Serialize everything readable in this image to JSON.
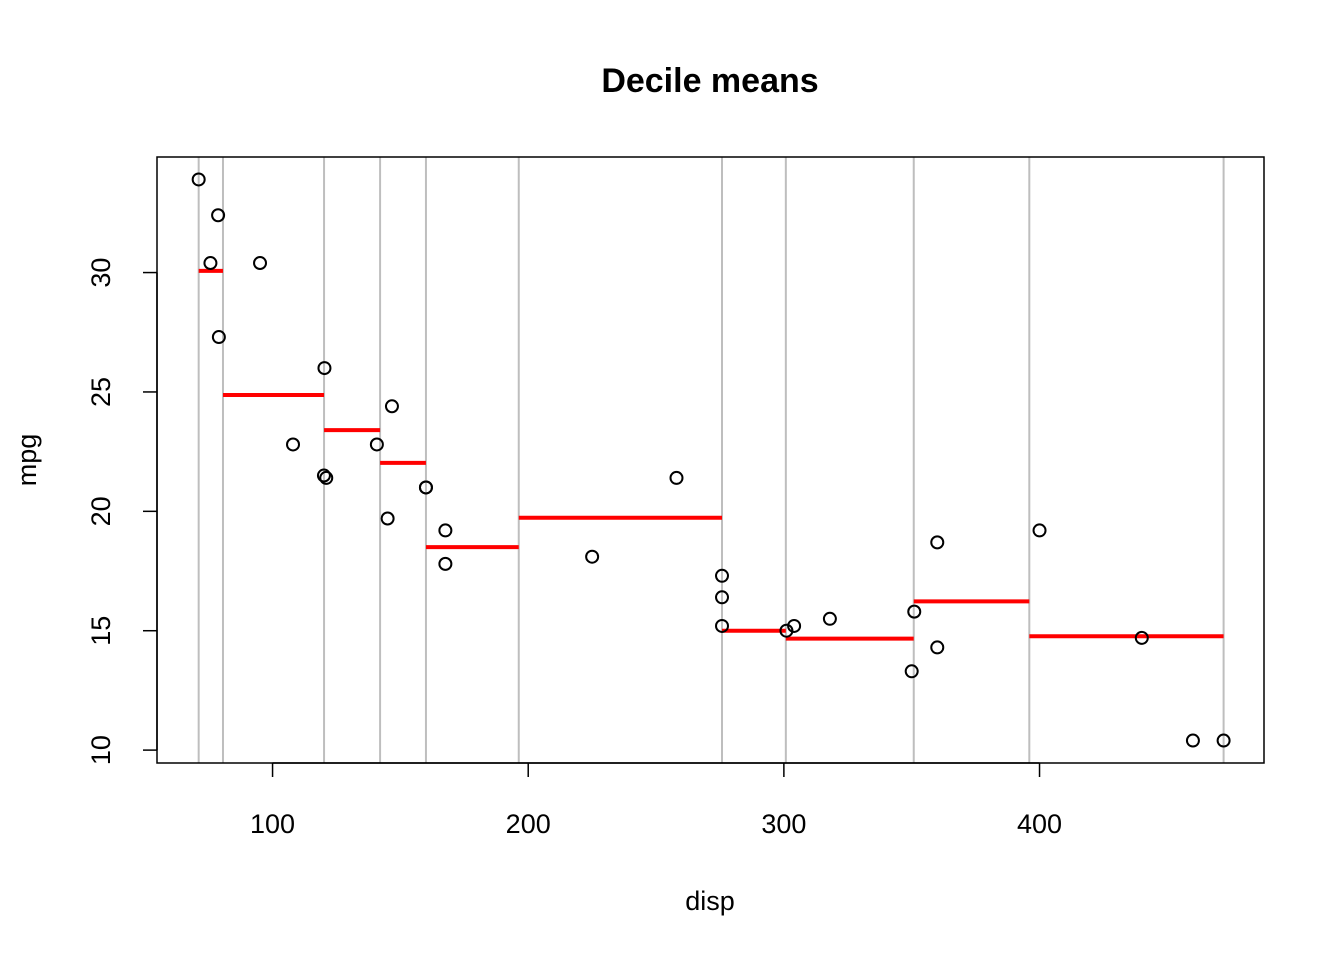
{
  "chart_data": {
    "type": "scatter",
    "title": "Decile means",
    "xlabel": "disp",
    "ylabel": "mpg",
    "xlim": [
      54.8,
      487.8
    ],
    "ylim": [
      9.46,
      34.84
    ],
    "x_ticks": [
      100,
      200,
      300,
      400
    ],
    "y_ticks": [
      10,
      15,
      20,
      25,
      30
    ],
    "grid": false,
    "colors": {
      "points": "#000000",
      "decile_means": "#ff0000",
      "decile_breaks": "#bebebe"
    },
    "points": [
      {
        "x": 160,
        "y": 21.0
      },
      {
        "x": 160,
        "y": 21.0
      },
      {
        "x": 108,
        "y": 22.8
      },
      {
        "x": 258,
        "y": 21.4
      },
      {
        "x": 360,
        "y": 18.7
      },
      {
        "x": 225,
        "y": 18.1
      },
      {
        "x": 360,
        "y": 14.3
      },
      {
        "x": 146.7,
        "y": 24.4
      },
      {
        "x": 140.8,
        "y": 22.8
      },
      {
        "x": 167.6,
        "y": 19.2
      },
      {
        "x": 167.6,
        "y": 17.8
      },
      {
        "x": 275.8,
        "y": 16.4
      },
      {
        "x": 275.8,
        "y": 17.3
      },
      {
        "x": 275.8,
        "y": 15.2
      },
      {
        "x": 472,
        "y": 10.4
      },
      {
        "x": 460,
        "y": 10.4
      },
      {
        "x": 440,
        "y": 14.7
      },
      {
        "x": 78.7,
        "y": 32.4
      },
      {
        "x": 75.7,
        "y": 30.4
      },
      {
        "x": 71.1,
        "y": 33.9
      },
      {
        "x": 120.1,
        "y": 21.5
      },
      {
        "x": 318,
        "y": 15.5
      },
      {
        "x": 304,
        "y": 15.2
      },
      {
        "x": 350,
        "y": 13.3
      },
      {
        "x": 400,
        "y": 19.2
      },
      {
        "x": 79,
        "y": 27.3
      },
      {
        "x": 120.3,
        "y": 26.0
      },
      {
        "x": 95.1,
        "y": 30.4
      },
      {
        "x": 351,
        "y": 15.8
      },
      {
        "x": 145,
        "y": 19.7
      },
      {
        "x": 301,
        "y": 15.0
      },
      {
        "x": 121,
        "y": 21.4
      }
    ],
    "decile_breaks": [
      71.1,
      80.61,
      120.14,
      142.06,
      160.0,
      196.3,
      275.8,
      300.77,
      350.8,
      396.0,
      472.0
    ],
    "decile_means": [
      {
        "x_start": 71.1,
        "x_end": 80.61,
        "mean": 30.07
      },
      {
        "x_start": 80.61,
        "x_end": 120.14,
        "mean": 24.87
      },
      {
        "x_start": 120.14,
        "x_end": 142.06,
        "mean": 23.4
      },
      {
        "x_start": 142.06,
        "x_end": 160.0,
        "mean": 22.03
      },
      {
        "x_start": 160.0,
        "x_end": 196.3,
        "mean": 18.5
      },
      {
        "x_start": 196.3,
        "x_end": 275.8,
        "mean": 19.73
      },
      {
        "x_start": 275.8,
        "x_end": 300.77,
        "mean": 15.0
      },
      {
        "x_start": 300.77,
        "x_end": 350.8,
        "mean": 14.67
      },
      {
        "x_start": 350.8,
        "x_end": 396.0,
        "mean": 16.23
      },
      {
        "x_start": 396.0,
        "x_end": 472.0,
        "mean": 14.77
      }
    ]
  }
}
